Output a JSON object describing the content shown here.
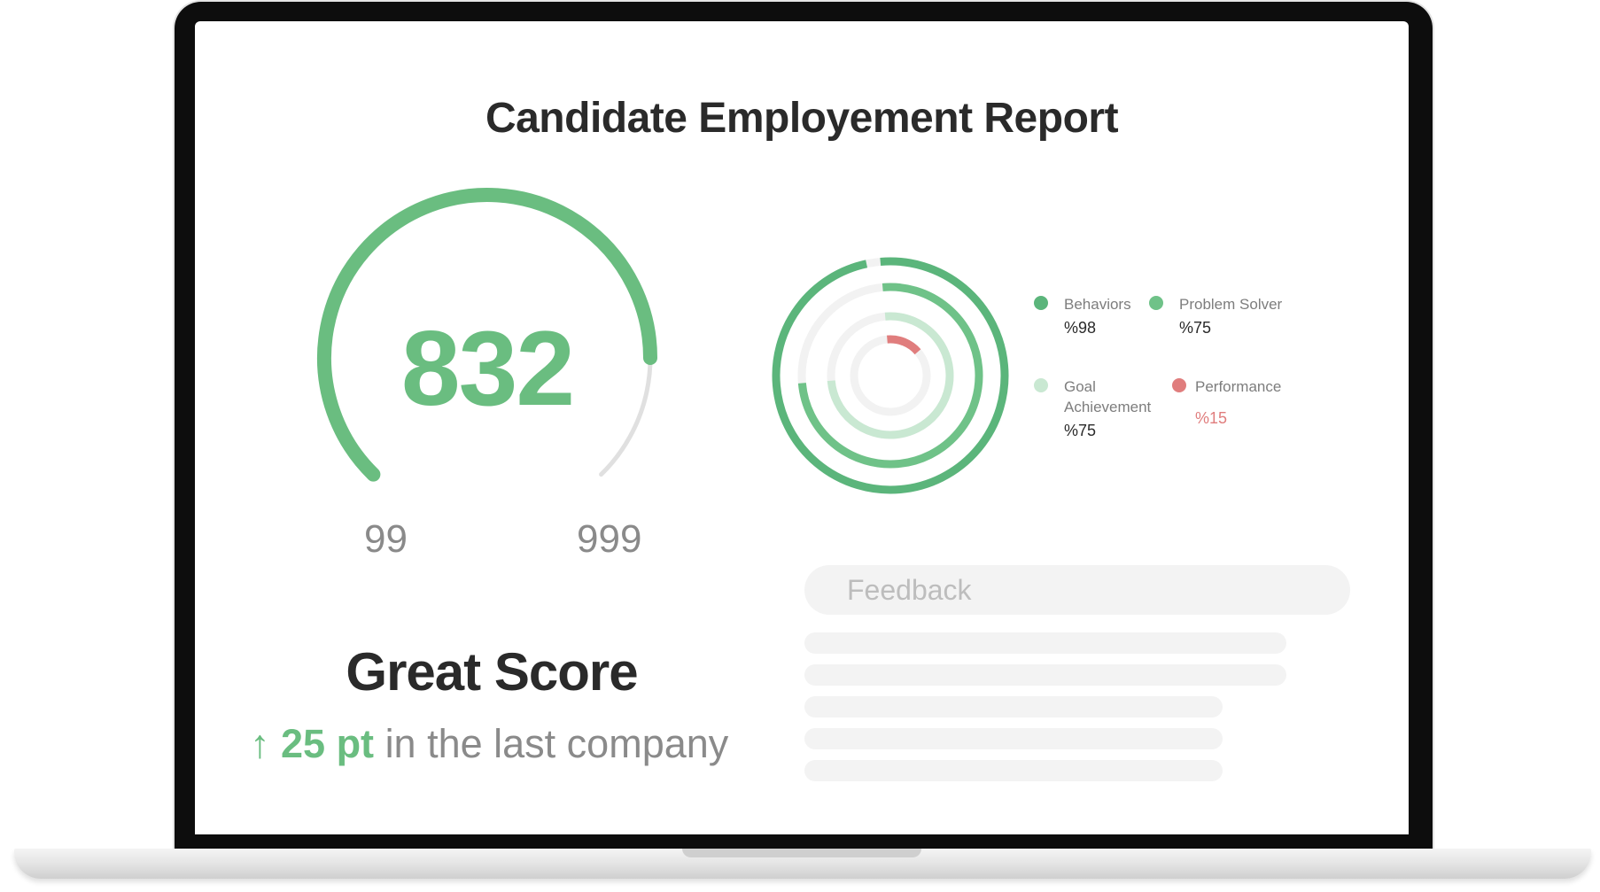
{
  "report": {
    "title": "Candidate Employement Report"
  },
  "score": {
    "value": "832",
    "min_label": "99",
    "max_label": "999",
    "headline": "Great Score",
    "change_icon": "arrow-up-icon",
    "change_glyph": "↑",
    "change_value": "25 pt",
    "change_text": "in the last company"
  },
  "metrics": [
    {
      "label": "Behaviors",
      "value": "%98",
      "color": "#5bb57b"
    },
    {
      "label": "Problem Solver",
      "value": "%75",
      "color": "#6fc288"
    },
    {
      "label": "Goal Achievement",
      "value": "%75",
      "color": "#c9e8d2"
    },
    {
      "label": "Performance",
      "value": "%15",
      "color": "#e07d7d"
    }
  ],
  "feedback": {
    "placeholder": "Feedback"
  },
  "colors": {
    "accent": "#6abd80",
    "track": "#e0e0e0",
    "title": "#2a2a2a",
    "muted": "#8a8a8a",
    "danger": "#e07d7d"
  }
}
